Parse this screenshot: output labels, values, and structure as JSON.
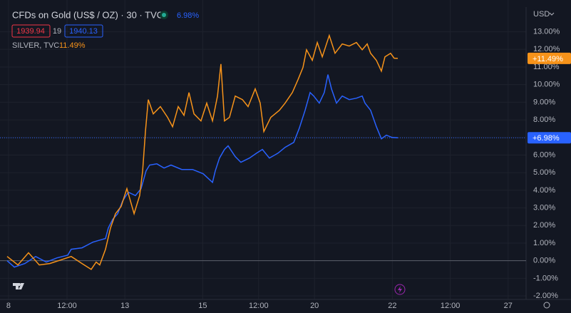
{
  "chart_data": {
    "type": "line",
    "title": "CFDs on Gold (US$ / OZ) · 30 · TVC",
    "currency": "USD",
    "ohlc_labels": [
      "1939.94",
      "19",
      "1940.13"
    ],
    "xlim": [
      0,
      260
    ],
    "ylim": [
      -2.2,
      14.4
    ],
    "xticks": [
      {
        "value": 0.7,
        "label": "8"
      },
      {
        "value": 30,
        "label": "12:00"
      },
      {
        "value": 59,
        "label": "13"
      },
      {
        "value": 98,
        "label": "15"
      },
      {
        "value": 126,
        "label": "12:00"
      },
      {
        "value": 154,
        "label": "20"
      },
      {
        "value": 193,
        "label": "22"
      },
      {
        "value": 222,
        "label": "12:00"
      },
      {
        "value": 251,
        "label": "27"
      }
    ],
    "yticks": [
      {
        "value": -2,
        "label": "-2.00%"
      },
      {
        "value": -1,
        "label": "-1.00%"
      },
      {
        "value": 0,
        "label": "0.00%"
      },
      {
        "value": 1,
        "label": "1.00%"
      },
      {
        "value": 2,
        "label": "2.00%"
      },
      {
        "value": 3,
        "label": "3.00%"
      },
      {
        "value": 4,
        "label": "4.00%"
      },
      {
        "value": 5,
        "label": "5.00%"
      },
      {
        "value": 6,
        "label": "6.00%"
      },
      {
        "value": 7,
        "label": "7.00%"
      },
      {
        "value": 8,
        "label": "8.00%"
      },
      {
        "value": 9,
        "label": "9.00%"
      },
      {
        "value": 10,
        "label": "10.00%"
      },
      {
        "value": 11,
        "label": "11.00%"
      },
      {
        "value": 12,
        "label": "12.00%"
      },
      {
        "value": 13,
        "label": "13.00%"
      }
    ],
    "grid": true,
    "series": [
      {
        "name": "CFDs on Gold (US$ / OZ) · 30 · TVC",
        "color": "#2962ff",
        "legend_value": "6.98%",
        "last_label": "+6.98%",
        "x": [
          0,
          3.6,
          8.9,
          14.3,
          19.6,
          25,
          30.4,
          32.1,
          37.5,
          42.9,
          46.4,
          49.3,
          50.7,
          52.9,
          55.4,
          57.9,
          60.7,
          64.3,
          67.1,
          69.6,
          71.4,
          75,
          78.6,
          82.1,
          87.5,
          92.9,
          98.2,
          102.9,
          104.3,
          106.4,
          108.9,
          110.7,
          114.3,
          117.1,
          121.4,
          125,
          127.9,
          131.4,
          135.7,
          139.3,
          143.6,
          146.4,
          149.3,
          151.8,
          153.6,
          156.4,
          158.9,
          160.7,
          162.5,
          165,
          167.9,
          171.4,
          175,
          177.9,
          179.3,
          182.1,
          185,
          187.5,
          190,
          192.9,
          195.7
        ],
        "values": [
          0,
          -0.36,
          -0.16,
          0.24,
          -0.08,
          0.16,
          0.32,
          0.65,
          0.73,
          1.05,
          1.17,
          1.26,
          1.86,
          2.35,
          2.67,
          3.4,
          3.89,
          3.7,
          4.09,
          5.1,
          5.43,
          5.5,
          5.26,
          5.43,
          5.18,
          5.18,
          4.94,
          4.45,
          5.1,
          5.83,
          6.32,
          6.52,
          5.91,
          5.59,
          5.83,
          6.11,
          6.32,
          5.83,
          6.11,
          6.44,
          6.72,
          7.53,
          8.54,
          9.55,
          9.35,
          8.95,
          9.55,
          10.57,
          9.76,
          8.95,
          9.35,
          9.15,
          9.23,
          9.35,
          8.95,
          8.54,
          7.61,
          6.92,
          7.13,
          7.0,
          6.98
        ]
      },
      {
        "name": "SILVER, TVC",
        "color": "#f7931a",
        "legend_value": "11.49%",
        "last_label": "+11.49%",
        "x": [
          0,
          5.4,
          10.7,
          16.1,
          21.4,
          26.8,
          32.1,
          37.5,
          42.1,
          44.6,
          46.4,
          49.3,
          51.8,
          54.3,
          57.1,
          60,
          63.6,
          66.4,
          67.9,
          69.3,
          70.7,
          73.2,
          76.8,
          80.4,
          82.9,
          85.7,
          88.6,
          91.1,
          93.6,
          97.1,
          100,
          102.9,
          105.4,
          107.1,
          108.9,
          111.4,
          114.3,
          117.9,
          120.7,
          124.3,
          126.8,
          128.6,
          132.1,
          136.4,
          139.3,
          142.9,
          145.7,
          148.2,
          150,
          152.9,
          155.4,
          157.9,
          161.4,
          164.3,
          167.9,
          171.4,
          175,
          177.9,
          180.4,
          182.1,
          185,
          187.5,
          189.3,
          192.1,
          193.9,
          195.7
        ],
        "values": [
          0.24,
          -0.24,
          0.45,
          -0.24,
          -0.16,
          0.04,
          0.24,
          -0.16,
          -0.49,
          -0.08,
          -0.24,
          0.65,
          1.86,
          2.67,
          3.08,
          4.09,
          2.67,
          3.7,
          5.1,
          7.33,
          9.15,
          8.34,
          8.75,
          8.14,
          7.61,
          8.75,
          8.26,
          9.55,
          8.34,
          7.94,
          8.95,
          7.94,
          9.35,
          11.17,
          7.94,
          8.14,
          9.35,
          9.15,
          8.75,
          9.76,
          8.95,
          7.33,
          8.14,
          8.54,
          8.95,
          9.55,
          10.28,
          10.97,
          11.98,
          11.38,
          12.39,
          11.58,
          12.79,
          11.78,
          12.31,
          12.19,
          12.39,
          11.98,
          12.31,
          11.78,
          11.38,
          10.77,
          11.58,
          11.78,
          11.5,
          11.49
        ]
      }
    ]
  }
}
